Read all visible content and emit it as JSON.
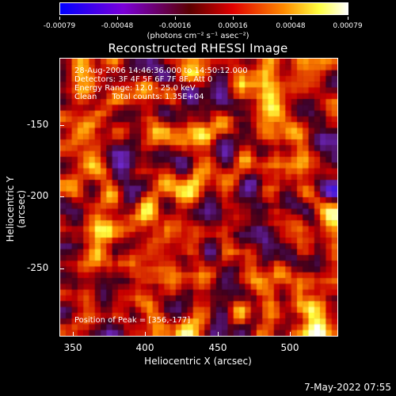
{
  "colorbar": {
    "tick_labels": [
      "-0.00079",
      "-0.00048",
      "-0.00016",
      "0.00016",
      "0.00048",
      "0.00079"
    ],
    "unit": "(photons cm⁻² s⁻¹ asec⁻²)",
    "colors": [
      "#0000ff",
      "#7b00d8",
      "#7a0000",
      "#e00000",
      "#ff8c00",
      "#ffff40",
      "#ffffff"
    ]
  },
  "title": "Reconstructed RHESSI Image",
  "info": {
    "time": "28-Aug-2006 14:46:36.000 to 14:50:12.000",
    "detectors": "Detectors: 3F 4F 5F 6F 7F 8F, Att 0",
    "energy": "Energy Range: 12.0 - 25.0 keV",
    "clean": "Clean      Total counts: 1.35E+04"
  },
  "peak": "Position of Peak = [356,-177]",
  "axes": {
    "xlabel": "Heliocentric X (arcsec)",
    "ylabel": "Heliocentric Y (arcsec)",
    "xticks": [
      "350",
      "400",
      "450",
      "500"
    ],
    "yticks": [
      "-150",
      "-200",
      "-250"
    ]
  },
  "footer": "7-May-2022 07:55"
}
